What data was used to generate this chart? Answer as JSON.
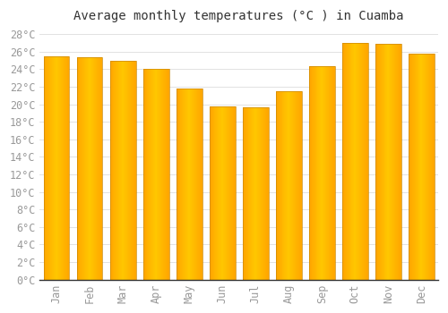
{
  "title": "Average monthly temperatures (°C ) in Cuamba",
  "months": [
    "Jan",
    "Feb",
    "Mar",
    "Apr",
    "May",
    "Jun",
    "Jul",
    "Aug",
    "Sep",
    "Oct",
    "Nov",
    "Dec"
  ],
  "temperatures": [
    25.5,
    25.4,
    25.0,
    24.0,
    21.8,
    19.8,
    19.7,
    21.5,
    24.3,
    27.0,
    26.9,
    25.8
  ],
  "bar_color_face": "#FFB300",
  "bar_color_highlight": "#FFD966",
  "bar_edge_color": "#CC8800",
  "background_color": "#FFFFFF",
  "grid_color": "#DDDDDD",
  "ytick_min": 0,
  "ytick_max": 28,
  "ytick_step": 2,
  "title_fontsize": 10,
  "tick_fontsize": 8.5,
  "tick_color": "#999999",
  "bar_width": 0.78
}
